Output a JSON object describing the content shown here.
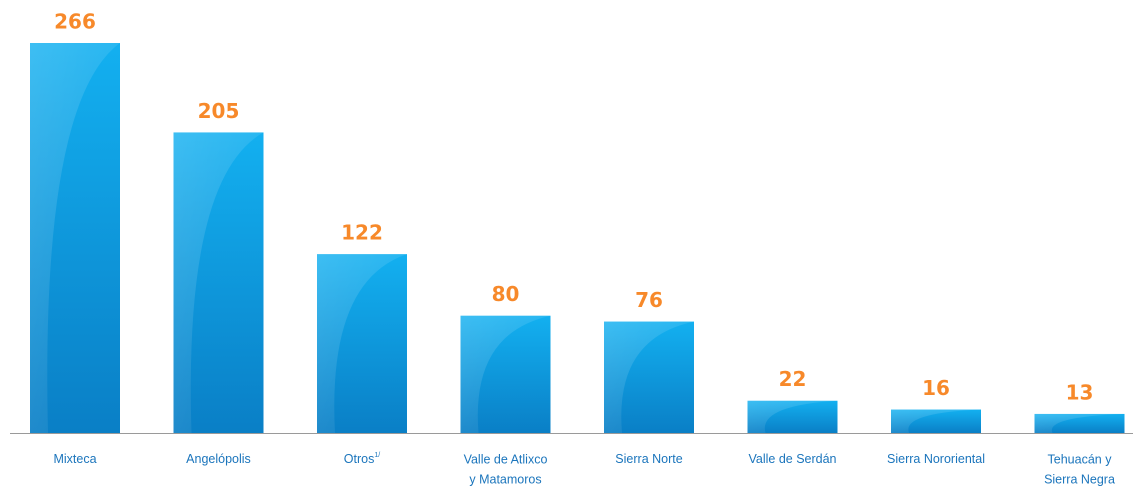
{
  "chart_data": {
    "type": "bar",
    "categories": [
      "Mixteca",
      "Angelópolis",
      "Otros",
      [
        "Valle de Atlixco",
        "y Matamoros"
      ],
      "Sierra Norte",
      "Valle de Serdán",
      "Sierra Nororiental",
      [
        "Tehuacán y",
        "Sierra Negra"
      ]
    ],
    "category_superscripts": {
      "2": "1/"
    },
    "values": [
      266,
      205,
      122,
      80,
      76,
      22,
      16,
      13
    ],
    "color": "#0b8ad4"
  }
}
